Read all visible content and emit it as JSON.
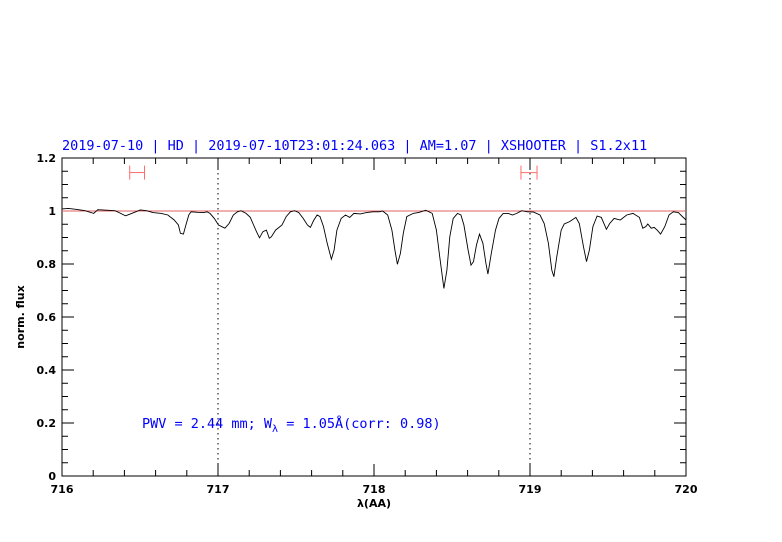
{
  "chart_data": {
    "type": "line",
    "title": "2019-07-10 | HD | 2019-07-10T23:01:24.063 | AM=1.07 | XSHOOTER | S1.2x11",
    "xlabel": "λ(AA)",
    "ylabel": "norm. flux",
    "xlim": [
      716,
      720
    ],
    "ylim": [
      0,
      1.2
    ],
    "x_ticks": [
      716,
      717,
      718,
      719,
      720
    ],
    "x_tick_labels": [
      "716",
      "717",
      "718",
      "719",
      "720"
    ],
    "y_ticks": [
      0,
      0.2,
      0.4,
      0.6,
      0.8,
      1,
      1.2
    ],
    "y_tick_labels": [
      "0",
      "0.2",
      "0.4",
      "0.6",
      "0.8",
      "1",
      "1.2"
    ],
    "grid": false,
    "reference_line": {
      "y": 1,
      "color": "#e06060"
    },
    "vertical_markers": [
      717,
      719
    ],
    "intervals": [
      {
        "x": [
          716.434,
          716.529
        ],
        "y": 1.145,
        "color": "#ff6b6b"
      },
      {
        "x": [
          718.942,
          719.045
        ],
        "y": 1.145,
        "color": "#ff6b6b"
      }
    ],
    "annotation": {
      "prefix": "PWV = 2.44 mm; W",
      "subscript": "λ",
      "suffix": " = 1.05Å(corr: 0.98)",
      "color": "#0000ff"
    },
    "series": [
      {
        "color": "#000000",
        "x": [
          716.0,
          716.041,
          716.095,
          716.149,
          716.203,
          716.23,
          716.285,
          716.339,
          716.366,
          716.407,
          716.447,
          716.502,
          716.542,
          716.583,
          716.637,
          716.678,
          716.719,
          716.746,
          716.759,
          716.778,
          716.794,
          716.813,
          716.827,
          716.868,
          716.908,
          716.93,
          716.949,
          716.976,
          717.003,
          717.044,
          717.071,
          717.098,
          717.125,
          717.147,
          717.18,
          717.207,
          717.228,
          717.247,
          717.266,
          717.288,
          717.31,
          717.329,
          717.342,
          717.369,
          717.41,
          717.437,
          717.464,
          717.491,
          717.518,
          717.546,
          717.573,
          717.592,
          717.613,
          717.635,
          717.654,
          717.676,
          717.7,
          717.727,
          717.744,
          717.762,
          717.79,
          717.817,
          717.844,
          717.871,
          717.912,
          717.952,
          717.993,
          718.034,
          718.055,
          718.088,
          718.115,
          718.134,
          718.15,
          718.169,
          718.188,
          718.21,
          718.251,
          718.291,
          718.332,
          718.373,
          718.4,
          718.421,
          718.448,
          718.467,
          718.486,
          718.508,
          718.535,
          718.557,
          718.576,
          718.603,
          718.622,
          718.638,
          718.657,
          718.676,
          718.698,
          718.717,
          718.73,
          718.752,
          718.779,
          718.801,
          718.828,
          718.861,
          718.888,
          718.915,
          718.947,
          718.983,
          719.023,
          719.064,
          719.091,
          719.118,
          719.14,
          719.153,
          719.172,
          719.2,
          719.219,
          719.254,
          719.294,
          719.316,
          719.343,
          719.362,
          719.381,
          719.403,
          719.43,
          719.457,
          719.49,
          719.511,
          719.539,
          719.579,
          719.62,
          719.66,
          719.701,
          719.723,
          719.742,
          719.755,
          719.777,
          719.796,
          719.815,
          719.837,
          719.864,
          719.891,
          719.918,
          719.951,
          719.973,
          720.0
        ],
        "y": [
          1.008,
          1.01,
          1.006,
          1.001,
          0.991,
          1.005,
          1.003,
          1.001,
          0.994,
          0.982,
          0.991,
          1.004,
          1.001,
          0.994,
          0.991,
          0.985,
          0.966,
          0.947,
          0.916,
          0.913,
          0.947,
          0.985,
          0.997,
          0.995,
          0.994,
          0.997,
          0.991,
          0.972,
          0.947,
          0.935,
          0.953,
          0.985,
          0.997,
          1.001,
          0.991,
          0.976,
          0.947,
          0.922,
          0.899,
          0.922,
          0.928,
          0.897,
          0.903,
          0.928,
          0.947,
          0.979,
          0.997,
          1.001,
          0.994,
          0.972,
          0.947,
          0.938,
          0.964,
          0.985,
          0.979,
          0.941,
          0.878,
          0.818,
          0.853,
          0.928,
          0.972,
          0.985,
          0.976,
          0.991,
          0.989,
          0.994,
          0.997,
          0.997,
          1.0,
          0.985,
          0.928,
          0.853,
          0.799,
          0.84,
          0.916,
          0.979,
          0.991,
          0.995,
          1.003,
          0.991,
          0.928,
          0.828,
          0.708,
          0.777,
          0.903,
          0.972,
          0.991,
          0.985,
          0.947,
          0.853,
          0.796,
          0.809,
          0.872,
          0.913,
          0.878,
          0.803,
          0.762,
          0.84,
          0.928,
          0.972,
          0.991,
          0.991,
          0.985,
          0.991,
          1.001,
          0.997,
          0.996,
          0.985,
          0.953,
          0.878,
          0.777,
          0.752,
          0.828,
          0.928,
          0.951,
          0.96,
          0.976,
          0.953,
          0.865,
          0.809,
          0.853,
          0.941,
          0.981,
          0.976,
          0.931,
          0.953,
          0.972,
          0.966,
          0.985,
          0.991,
          0.976,
          0.935,
          0.941,
          0.951,
          0.935,
          0.938,
          0.928,
          0.913,
          0.941,
          0.985,
          0.997,
          0.994,
          0.981,
          0.966
        ]
      }
    ]
  }
}
